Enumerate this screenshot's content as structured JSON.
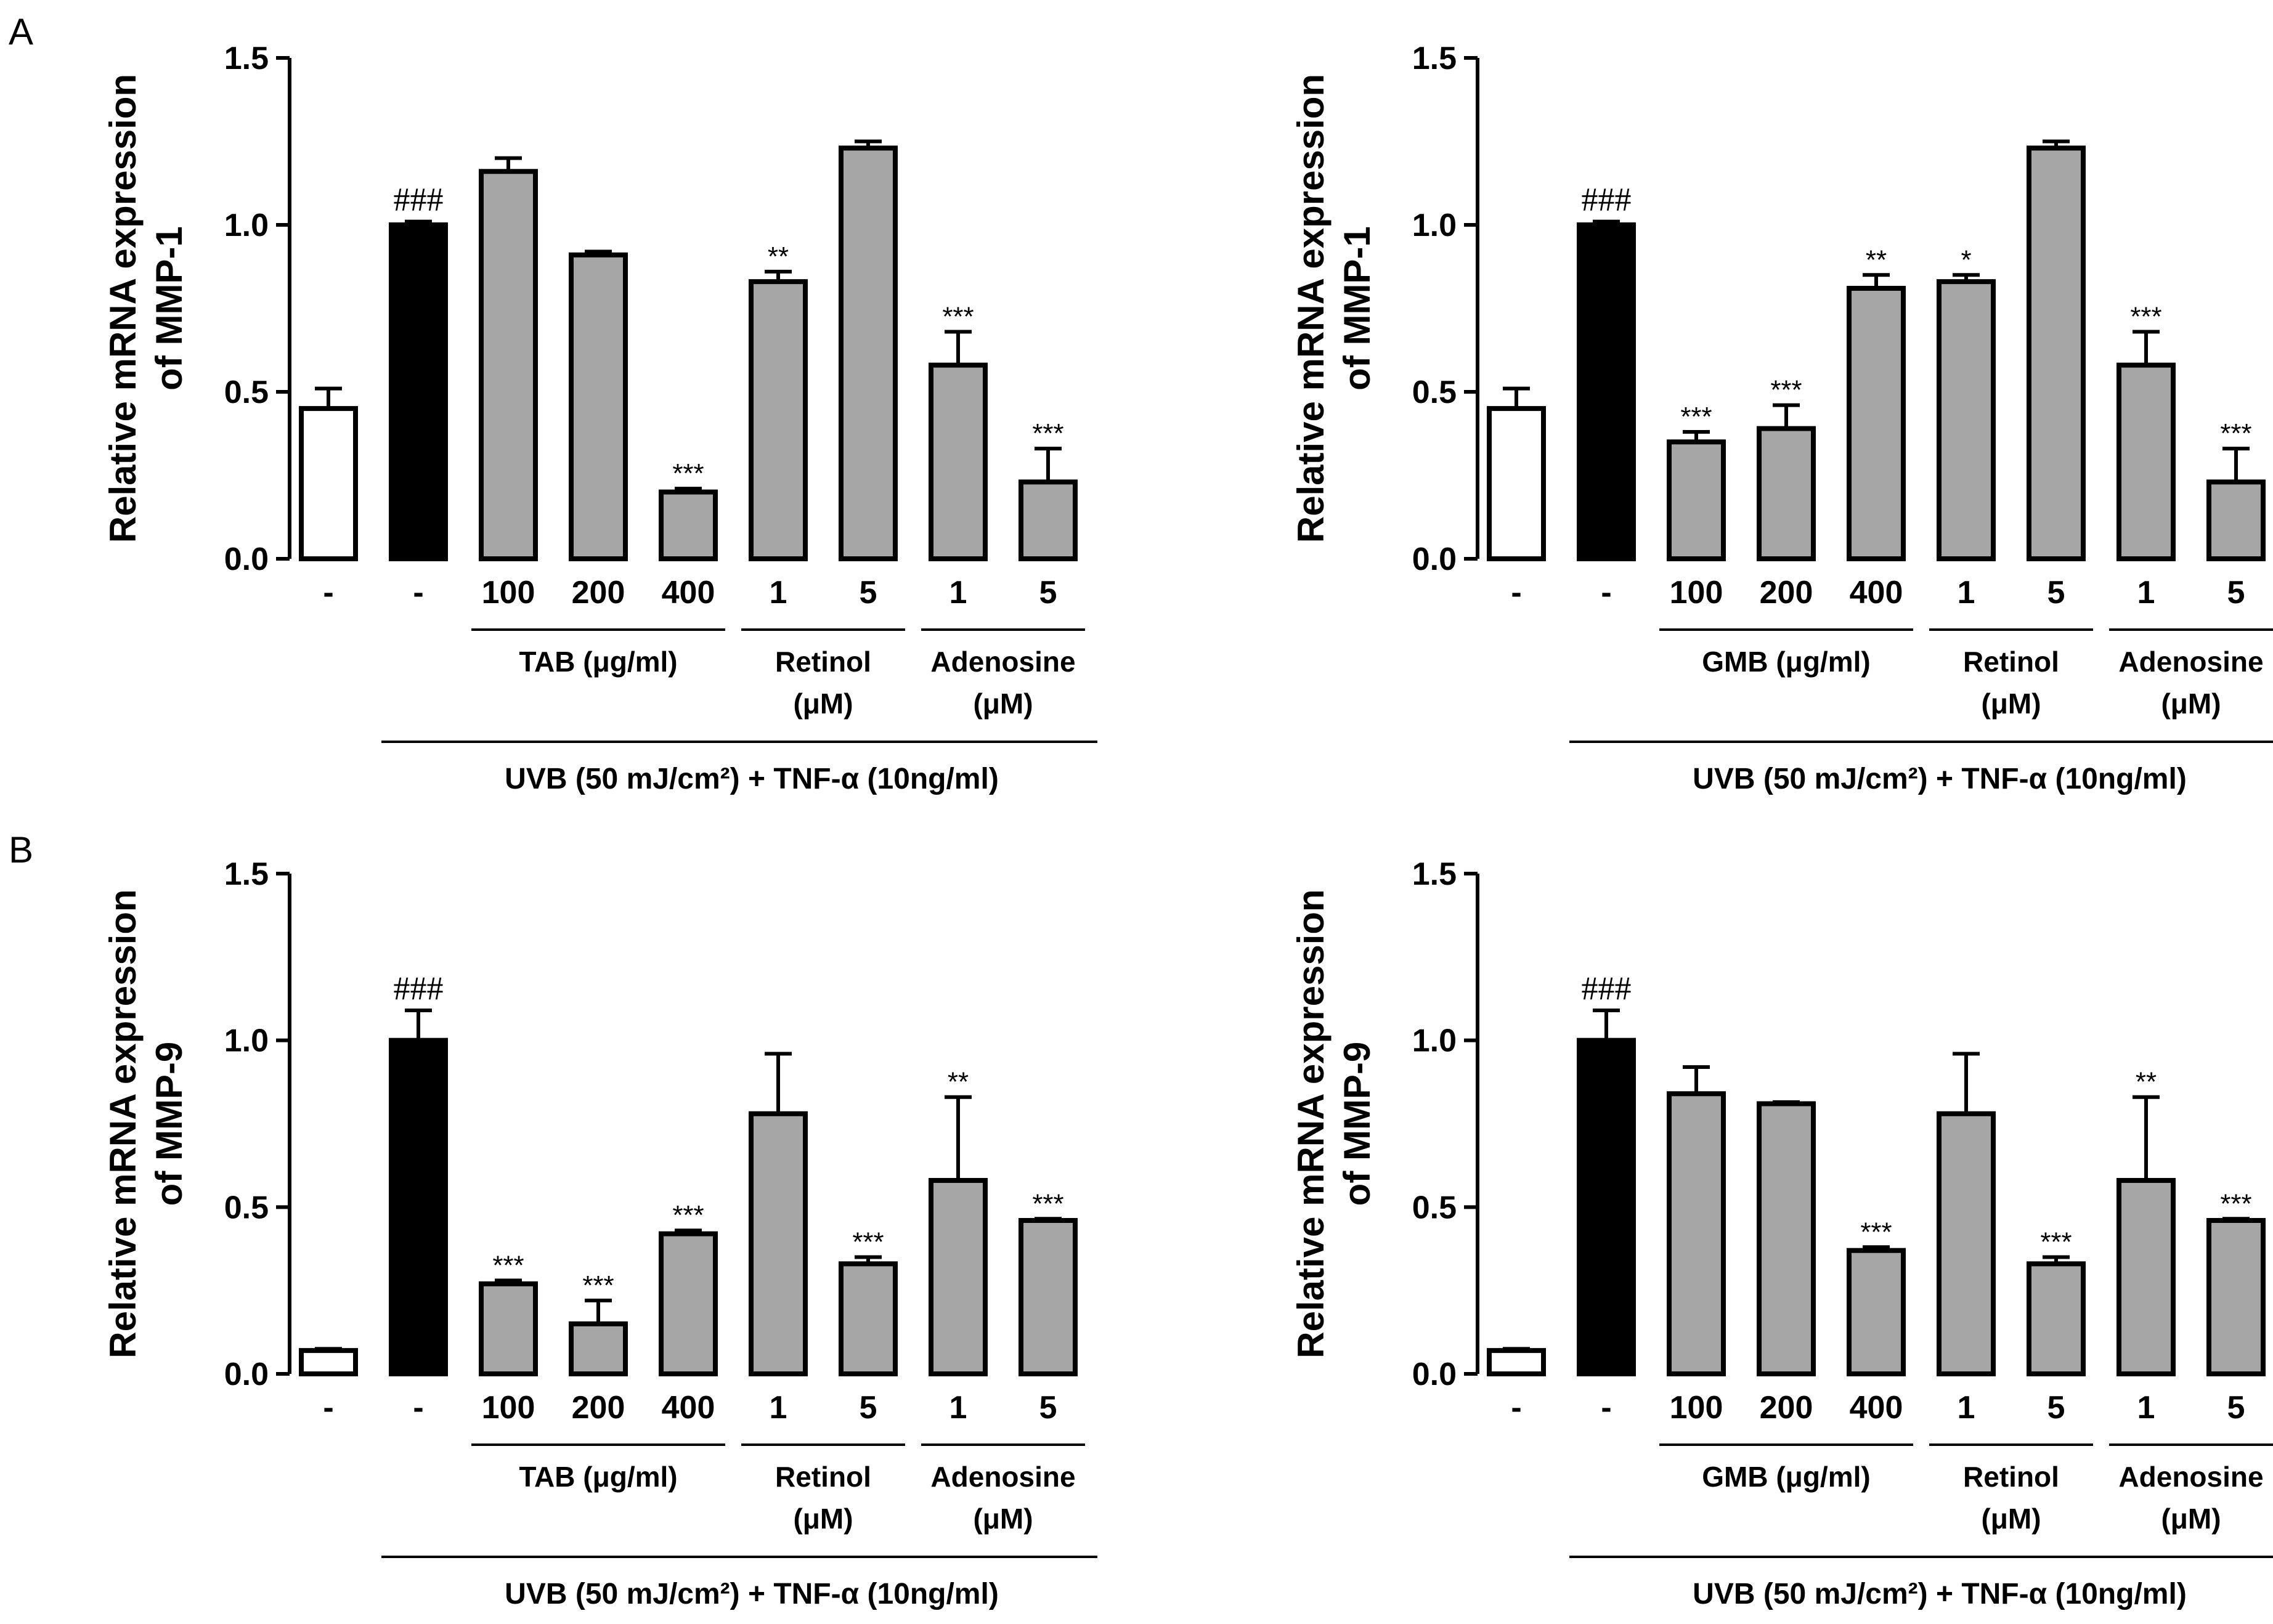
{
  "panel_letters": [
    "A",
    "B"
  ],
  "colors": {
    "control": "#ffffff",
    "uvb": "#000000",
    "treated": "#a6a6a6",
    "stroke": "#000000"
  },
  "chart_data": [
    {
      "type": "bar",
      "panel": "A",
      "ylabel": [
        "Relative mRNA expression",
        "of MMP-1"
      ],
      "ylim": [
        0,
        1.5
      ],
      "yticks": [
        "0.0",
        "0.5",
        "1.0",
        "1.5"
      ],
      "categories": [
        "-",
        "-",
        "100",
        "200",
        "400",
        "1",
        "5",
        "1",
        "5"
      ],
      "values": [
        0.45,
        1.0,
        1.16,
        0.91,
        0.2,
        0.83,
        1.23,
        0.58,
        0.23
      ],
      "errors": [
        0.06,
        0.01,
        0.04,
        0.01,
        0.01,
        0.03,
        0.02,
        0.1,
        0.1
      ],
      "fills": [
        "control",
        "uvb",
        "treated",
        "treated",
        "treated",
        "treated",
        "treated",
        "treated",
        "treated"
      ],
      "significance": [
        "",
        "###",
        "",
        "",
        "***",
        "**",
        "",
        "***",
        "***"
      ],
      "groups": [
        {
          "label": [
            "TAB (μg/ml)"
          ],
          "from": 2,
          "to": 4
        },
        {
          "label": [
            "Retinol",
            "(μM)"
          ],
          "from": 5,
          "to": 6
        },
        {
          "label": [
            "Adenosine",
            "(μM)"
          ],
          "from": 7,
          "to": 8
        }
      ],
      "condition": "UVB  (50 mJ/cm²) + TNF-α (10ng/ml)"
    },
    {
      "type": "bar",
      "panel": "",
      "ylabel": [
        "Relative mRNA expression",
        "of MMP-1"
      ],
      "ylim": [
        0,
        1.5
      ],
      "yticks": [
        "0.0",
        "0.5",
        "1.0",
        "1.5"
      ],
      "categories": [
        "-",
        "-",
        "100",
        "200",
        "400",
        "1",
        "5",
        "1",
        "5"
      ],
      "values": [
        0.45,
        1.0,
        0.35,
        0.39,
        0.81,
        0.83,
        1.23,
        0.58,
        0.23
      ],
      "errors": [
        0.06,
        0.01,
        0.03,
        0.07,
        0.04,
        0.02,
        0.02,
        0.1,
        0.1
      ],
      "fills": [
        "control",
        "uvb",
        "treated",
        "treated",
        "treated",
        "treated",
        "treated",
        "treated",
        "treated"
      ],
      "significance": [
        "",
        "###",
        "***",
        "***",
        "**",
        "*",
        "",
        "***",
        "***"
      ],
      "groups": [
        {
          "label": [
            "GMB (μg/ml)"
          ],
          "from": 2,
          "to": 4
        },
        {
          "label": [
            "Retinol",
            "(μM)"
          ],
          "from": 5,
          "to": 6
        },
        {
          "label": [
            "Adenosine",
            "(μM)"
          ],
          "from": 7,
          "to": 8
        }
      ],
      "condition": "UVB  (50 mJ/cm²) + TNF-α (10ng/ml)"
    },
    {
      "type": "bar",
      "panel": "B",
      "ylabel": [
        "Relative mRNA expression",
        "of MMP-9"
      ],
      "ylim": [
        0,
        1.5
      ],
      "yticks": [
        "0.0",
        "0.5",
        "1.0",
        "1.5"
      ],
      "categories": [
        "-",
        "-",
        "100",
        "200",
        "400",
        "1",
        "5",
        "1",
        "5"
      ],
      "values": [
        0.07,
        1.0,
        0.27,
        0.15,
        0.42,
        0.78,
        0.33,
        0.58,
        0.46
      ],
      "errors": [
        0.005,
        0.09,
        0.01,
        0.07,
        0.01,
        0.18,
        0.02,
        0.25,
        0.005
      ],
      "fills": [
        "control",
        "uvb",
        "treated",
        "treated",
        "treated",
        "treated",
        "treated",
        "treated",
        "treated"
      ],
      "significance": [
        "",
        "###",
        "***",
        "***",
        "***",
        "",
        "***",
        "**",
        "***"
      ],
      "groups": [
        {
          "label": [
            "TAB (μg/ml)"
          ],
          "from": 2,
          "to": 4
        },
        {
          "label": [
            "Retinol",
            "(μM)"
          ],
          "from": 5,
          "to": 6
        },
        {
          "label": [
            "Adenosine",
            "(μM)"
          ],
          "from": 7,
          "to": 8
        }
      ],
      "condition": "UVB  (50 mJ/cm²) + TNF-α (10ng/ml)"
    },
    {
      "type": "bar",
      "panel": "",
      "ylabel": [
        "Relative mRNA expression",
        "of MMP-9"
      ],
      "ylim": [
        0,
        1.5
      ],
      "yticks": [
        "0.0",
        "0.5",
        "1.0",
        "1.5"
      ],
      "categories": [
        "-",
        "-",
        "100",
        "200",
        "400",
        "1",
        "5",
        "1",
        "5"
      ],
      "values": [
        0.07,
        1.0,
        0.84,
        0.81,
        0.37,
        0.78,
        0.33,
        0.58,
        0.46
      ],
      "errors": [
        0.005,
        0.09,
        0.08,
        0.005,
        0.01,
        0.18,
        0.02,
        0.25,
        0.005
      ],
      "fills": [
        "control",
        "uvb",
        "treated",
        "treated",
        "treated",
        "treated",
        "treated",
        "treated",
        "treated"
      ],
      "significance": [
        "",
        "###",
        "",
        "",
        "***",
        "",
        "***",
        "**",
        "***"
      ],
      "groups": [
        {
          "label": [
            "GMB (μg/ml)"
          ],
          "from": 2,
          "to": 4
        },
        {
          "label": [
            "Retinol",
            "(μM)"
          ],
          "from": 5,
          "to": 6
        },
        {
          "label": [
            "Adenosine",
            "(μM)"
          ],
          "from": 7,
          "to": 8
        }
      ],
      "condition": "UVB  (50 mJ/cm²) + TNF-α (10ng/ml)"
    }
  ]
}
